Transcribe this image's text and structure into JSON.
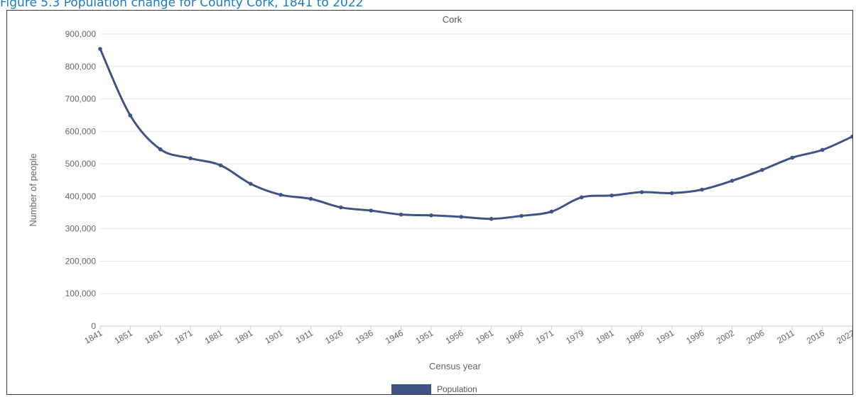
{
  "caption": "Figure 5.3 Population change for County Cork, 1841 to 2022",
  "colors": {
    "series": "#3f5385",
    "grid": "#e6e6e6",
    "axis": "#cccccc"
  },
  "chart_data": {
    "type": "line",
    "title": "Cork",
    "xlabel": "Census year",
    "ylabel": "Number of people",
    "ylim": [
      0,
      900000
    ],
    "yticks": [
      0,
      100000,
      200000,
      300000,
      400000,
      500000,
      600000,
      700000,
      800000,
      900000
    ],
    "ytick_labels": [
      "0",
      "100,000",
      "200,000",
      "300,000",
      "400,000",
      "500,000",
      "600,000",
      "700,000",
      "800,000",
      "900,000"
    ],
    "grid": true,
    "legend_position": "bottom",
    "categories": [
      "1841",
      "1851",
      "1861",
      "1871",
      "1881",
      "1891",
      "1901",
      "1911",
      "1926",
      "1936",
      "1946",
      "1951",
      "1956",
      "1961",
      "1966",
      "1971",
      "1979",
      "1981",
      "1986",
      "1991",
      "1996",
      "2002",
      "2006",
      "2011",
      "2016",
      "2022"
    ],
    "series": [
      {
        "name": "Population",
        "values": [
          854118,
          649308,
          544818,
          517076,
          495607,
          438432,
          404611,
          392104,
          365747,
          355957,
          343668,
          341284,
          336663,
          330443,
          339703,
          352883,
          396800,
          402465,
          412735,
          409814,
          420510,
          447829,
          481295,
          519032,
          542868,
          584156
        ]
      }
    ]
  }
}
